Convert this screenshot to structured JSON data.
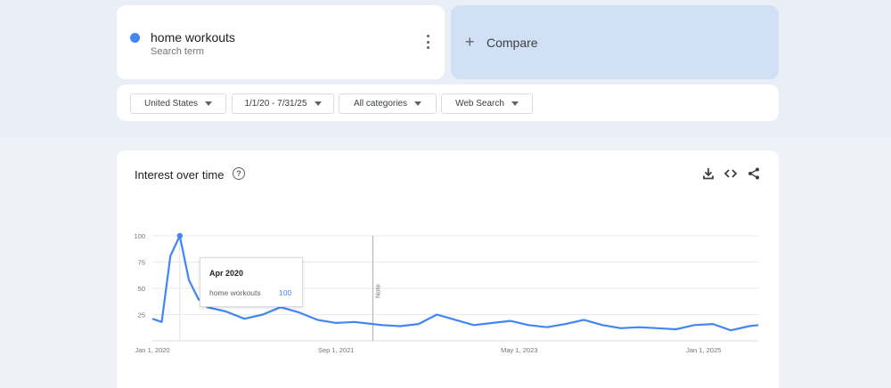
{
  "search_term": {
    "name": "home workouts",
    "subtitle": "Search term",
    "color": "#4285f4"
  },
  "compare": {
    "label": "Compare",
    "icon": "plus-icon"
  },
  "filters": {
    "region": "United States",
    "date_range": "1/1/20 - 7/31/25",
    "category": "All categories",
    "search_type": "Web Search"
  },
  "chart_section": {
    "title": "Interest over time",
    "icons": [
      "help-icon",
      "download-icon",
      "embed-icon",
      "share-icon"
    ]
  },
  "tooltip": {
    "title": "Apr 2020",
    "term": "home workouts",
    "value": "100"
  },
  "chart_data": {
    "type": "line",
    "title": "Interest over time",
    "xlabel": "",
    "ylabel": "",
    "ylim": [
      0,
      100
    ],
    "y_ticks": [
      "25",
      "50",
      "75",
      "100"
    ],
    "x_ticks": [
      "Jan 1, 2020",
      "Sep 1, 2021",
      "May 1, 2023",
      "Jan 1, 2025"
    ],
    "annotation": "Note",
    "annotation_at": "2022-01",
    "grid": true,
    "series": [
      {
        "name": "home workouts",
        "color": "#4285f4",
        "x": [
          "2020-01",
          "2020-02",
          "2020-03",
          "2020-04",
          "2020-05",
          "2020-06",
          "2020-07",
          "2020-09",
          "2020-11",
          "2021-01",
          "2021-03",
          "2021-05",
          "2021-07",
          "2021-09",
          "2021-11",
          "2022-01",
          "2022-02",
          "2022-04",
          "2022-06",
          "2022-08",
          "2022-10",
          "2022-12",
          "2023-02",
          "2023-04",
          "2023-06",
          "2023-08",
          "2023-10",
          "2023-12",
          "2024-02",
          "2024-04",
          "2024-06",
          "2024-08",
          "2024-10",
          "2024-12",
          "2025-02",
          "2025-04",
          "2025-06",
          "2025-07"
        ],
        "values": [
          21,
          18,
          81,
          100,
          58,
          40,
          32,
          28,
          21,
          25,
          32,
          27,
          20,
          17,
          18,
          16,
          15,
          14,
          16,
          25,
          20,
          15,
          17,
          19,
          15,
          13,
          16,
          20,
          15,
          12,
          13,
          12,
          11,
          15,
          16,
          10,
          14,
          15
        ]
      }
    ]
  }
}
